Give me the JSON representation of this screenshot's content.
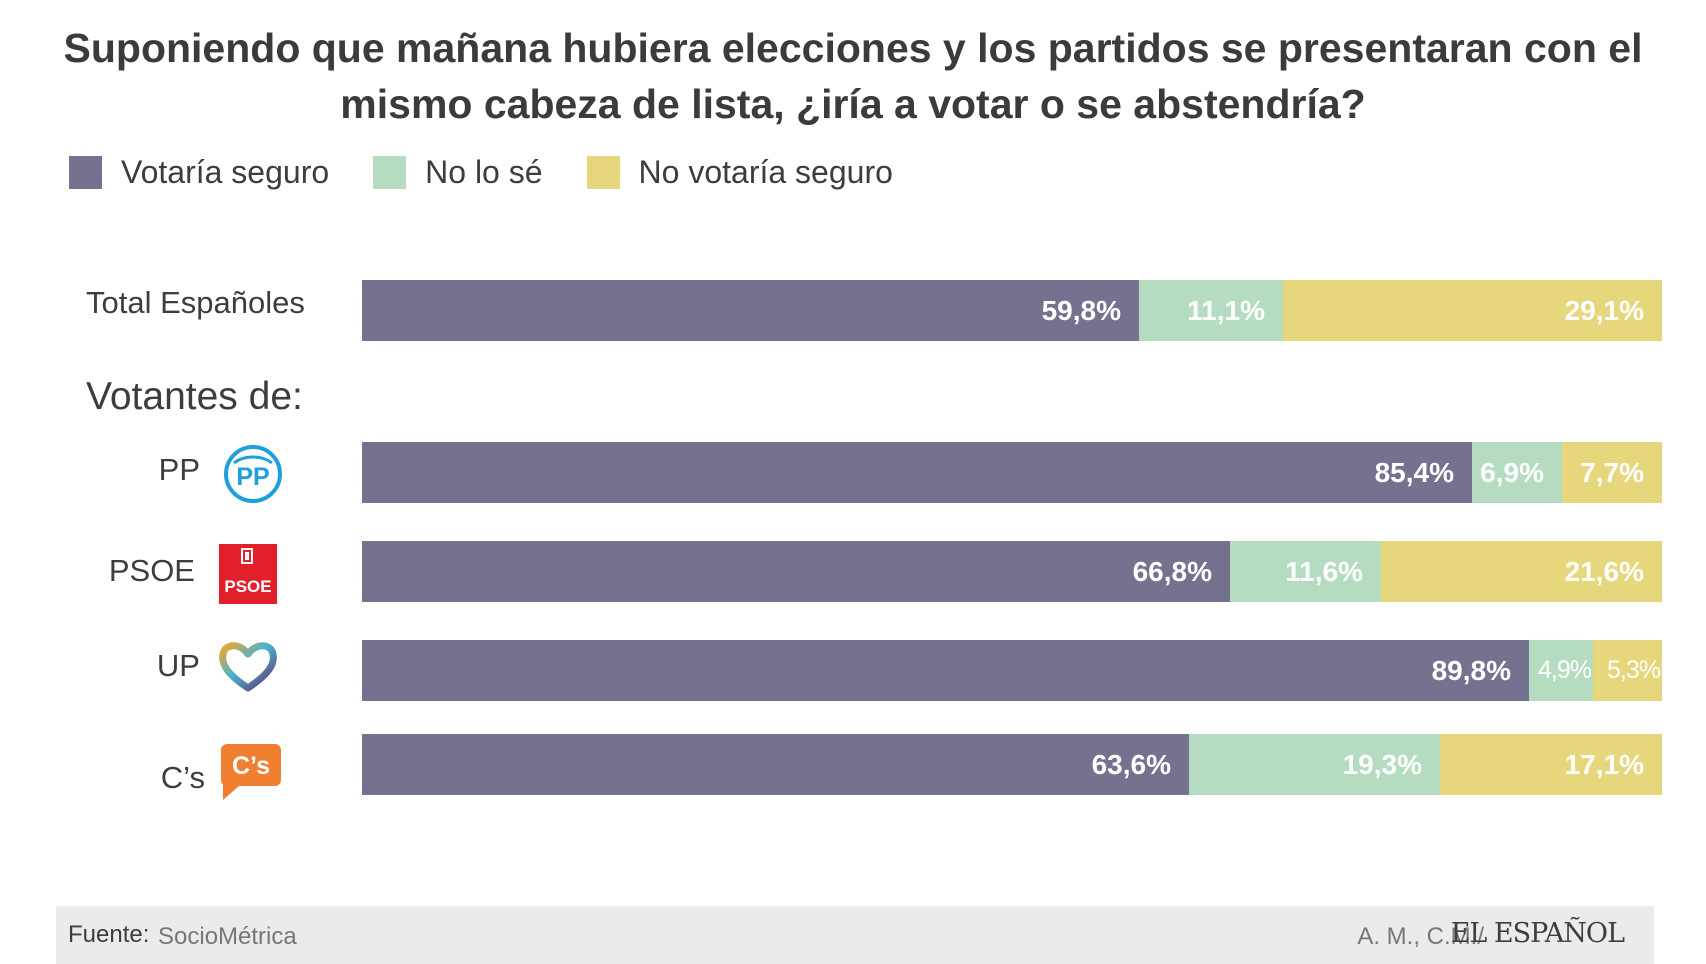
{
  "chart_data": {
    "type": "bar",
    "stacked": true,
    "orientation": "horizontal",
    "title": "Suponiendo que mañana hubiera elecciones y los partidos se presentaran con el mismo cabeza de lista, ¿iría a votar o se abstendría?",
    "section_label": "Votantes de:",
    "legend_position": "top-left",
    "categories": [
      "Total Españoles",
      "PP",
      "PSOE",
      "UP",
      "C’s"
    ],
    "series": [
      {
        "name": "Votaría seguro",
        "color": "#74728e",
        "values": [
          59.8,
          85.4,
          66.8,
          89.8,
          63.6
        ],
        "labels": [
          "59,8%",
          "85,4%",
          "66,8%",
          "89,8%",
          "63,6%"
        ]
      },
      {
        "name": "No lo sé",
        "color": "#b5dcc1",
        "values": [
          11.1,
          6.9,
          11.6,
          4.9,
          19.3
        ],
        "labels": [
          "11,1%",
          "6,9%",
          "11,6%",
          "4,9%",
          "19,3%"
        ]
      },
      {
        "name": "No votaría seguro",
        "color": "#e6d67c",
        "values": [
          29.1,
          7.7,
          21.6,
          5.3,
          17.1
        ],
        "labels": [
          "29,1%",
          "7,7%",
          "21,6%",
          "5,3%",
          "17,1%"
        ]
      }
    ],
    "xlim": [
      0,
      100
    ]
  },
  "logos": {
    "pp": {
      "text": "PP",
      "color": "#1fa0dc"
    },
    "psoe": {
      "text": "PSOE",
      "color": "#e3202a"
    },
    "up": {
      "colors": [
        "#f3a52b",
        "#46b3d1",
        "#6a2e6e"
      ]
    },
    "cs": {
      "text": "C’s",
      "color": "#f08030"
    }
  },
  "footer": {
    "source_lead": "Fuente:",
    "source": "SocioMétrica",
    "credit": "A. M., C.M./",
    "brand": "EL ESPAÑOL"
  }
}
